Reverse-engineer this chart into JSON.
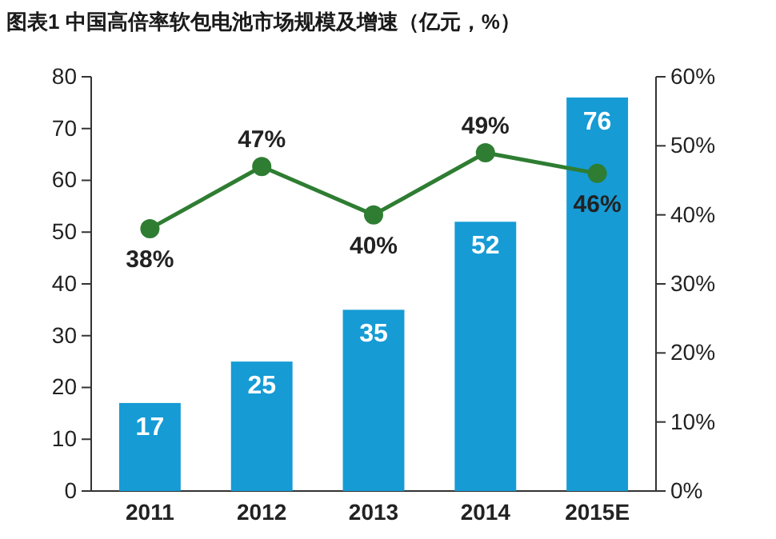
{
  "chart_data": {
    "type": "bar",
    "title": "图表1 中国高倍率软包电池市场规模及增速（亿元，%）",
    "categories": [
      "2011",
      "2012",
      "2013",
      "2014",
      "2015E"
    ],
    "series": [
      {
        "color": "#169bd5",
        "values": [
          17,
          25,
          35,
          52,
          76
        ],
        "value_labels": [
          "17",
          "25",
          "35",
          "52",
          "76"
        ]
      },
      {
        "type": "line",
        "axis": "y2",
        "color": "#2e7d32",
        "values": [
          38,
          47,
          40,
          49,
          46
        ],
        "value_labels": [
          "38%",
          "47%",
          "40%",
          "49%",
          "46%"
        ],
        "marker": "circle"
      }
    ],
    "ylim": [
      0,
      80
    ],
    "yticks": [
      0,
      10,
      20,
      30,
      40,
      50,
      60,
      70,
      80
    ],
    "y2lim": [
      0,
      60
    ],
    "y2ticks": [
      {
        "value": 0,
        "label": "0%"
      },
      {
        "value": 10,
        "label": "10%"
      },
      {
        "value": 20,
        "label": "20%"
      },
      {
        "value": 30,
        "label": "30%"
      },
      {
        "value": 40,
        "label": "40%"
      },
      {
        "value": 50,
        "label": "50%"
      },
      {
        "value": 60,
        "label": "60%"
      }
    ],
    "grid": false
  }
}
